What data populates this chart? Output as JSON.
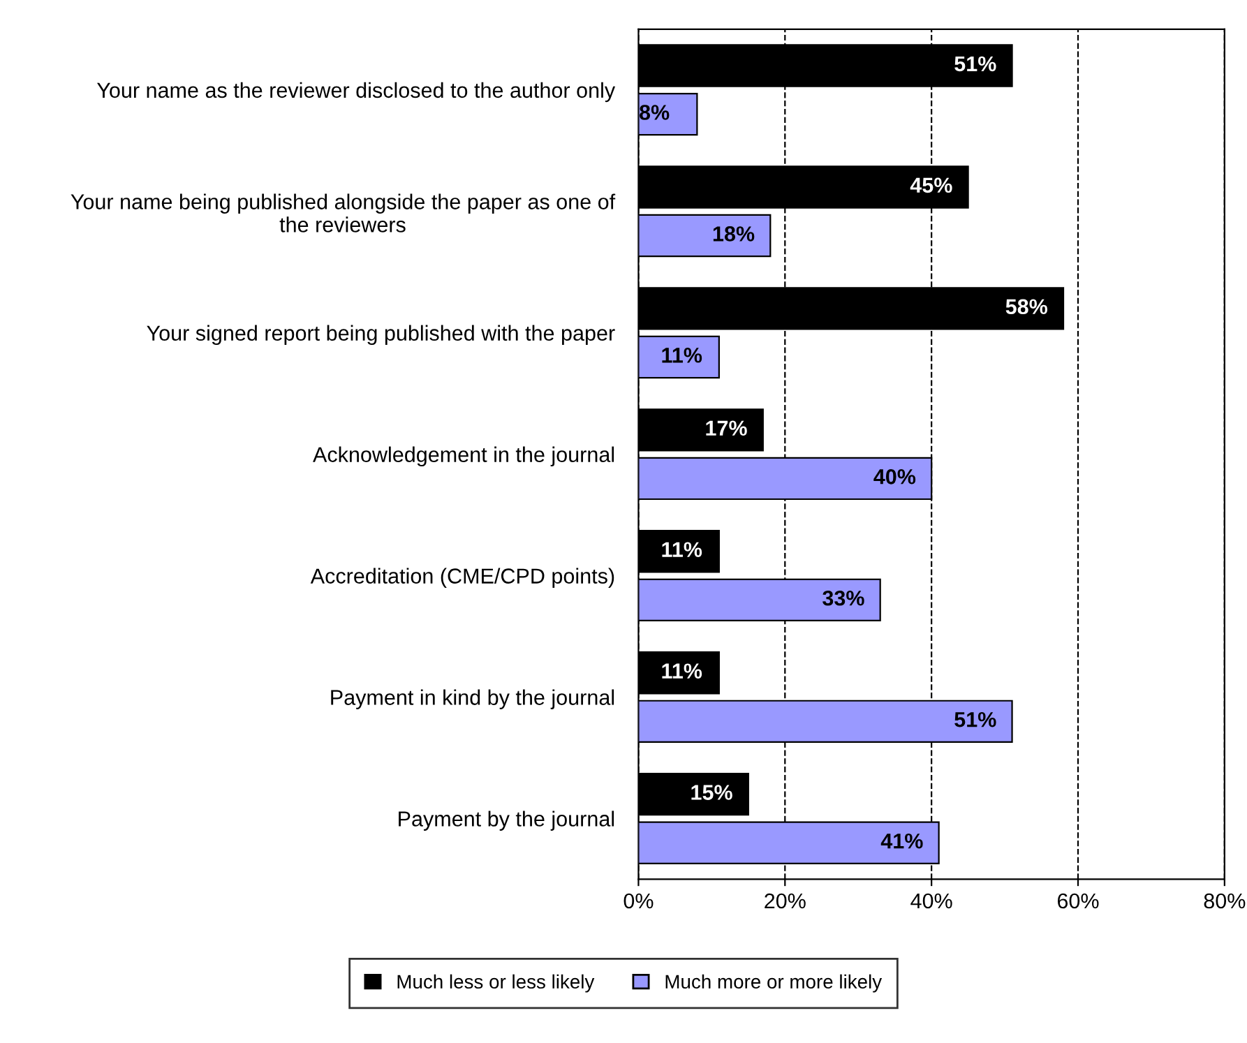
{
  "chart_data": {
    "type": "bar",
    "orientation": "horizontal",
    "categories": [
      "Your name as the reviewer disclosed to the author only",
      "Your name being published alongside the paper as one of\nthe reviewers",
      "Your signed report being published with the paper",
      "Acknowledgement in the journal",
      "Accreditation (CME/CPD points)",
      "Payment in kind by the journal",
      "Payment by the journal"
    ],
    "series": [
      {
        "name": "Much less or less likely",
        "color": "#000000",
        "values": [
          51,
          45,
          58,
          17,
          11,
          11,
          15
        ],
        "value_labels": [
          "51%",
          "45%",
          "58%",
          "17%",
          "11%",
          "11%",
          "15%"
        ]
      },
      {
        "name": "Much more or more likely",
        "color": "#9999ff",
        "values": [
          8,
          18,
          11,
          40,
          33,
          51,
          41
        ],
        "value_labels": [
          "8%",
          "18%",
          "11%",
          "40%",
          "33%",
          "51%",
          "41%"
        ]
      }
    ],
    "xlim": [
      0,
      80
    ],
    "xticks": [
      {
        "value": 0,
        "label": "0%"
      },
      {
        "value": 20,
        "label": "20%"
      },
      {
        "value": 40,
        "label": "40%"
      },
      {
        "value": 60,
        "label": "60%"
      },
      {
        "value": 80,
        "label": "80%"
      }
    ],
    "grid": "x",
    "legend": "bottom"
  }
}
